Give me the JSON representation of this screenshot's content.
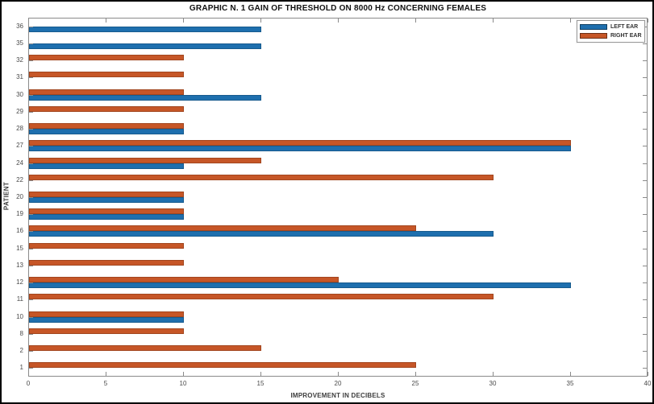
{
  "figure": {
    "background": "#ffffff",
    "frame_color": "#000000"
  },
  "chart_data": {
    "type": "bar",
    "orientation": "horizontal",
    "title": "GRAPHIC N. 1 GAIN OF THRESHOLD ON 8000 Hz CONCERNING FEMALES",
    "xlabel": "IMPROVEMENT IN DECIBELS",
    "ylabel": "PATIENT",
    "categories": [
      "36",
      "35",
      "32",
      "31",
      "30",
      "29",
      "28",
      "27",
      "24",
      "22",
      "20",
      "19",
      "16",
      "15",
      "13",
      "12",
      "11",
      "10",
      "8",
      "2",
      "1"
    ],
    "series": [
      {
        "name": "LEFT EAR",
        "color": "#1E6FAE",
        "values": [
          15,
          15,
          0,
          0,
          15,
          0,
          10,
          35,
          10,
          0,
          10,
          10,
          30,
          0,
          0,
          35,
          0,
          10,
          0,
          0,
          0
        ]
      },
      {
        "name": "RIGHT EAR",
        "color": "#C65627",
        "values": [
          0,
          0,
          10,
          10,
          10,
          10,
          10,
          35,
          15,
          30,
          10,
          10,
          25,
          10,
          10,
          20,
          30,
          10,
          10,
          15,
          25
        ]
      }
    ],
    "xlim": [
      0,
      40
    ],
    "xticks": [
      0,
      5,
      10,
      15,
      20,
      25,
      30,
      35,
      40
    ],
    "grid": false,
    "legend_position": "top-right",
    "group_stack_order_top_to_bottom": [
      "RIGHT EAR",
      "LEFT EAR"
    ]
  }
}
